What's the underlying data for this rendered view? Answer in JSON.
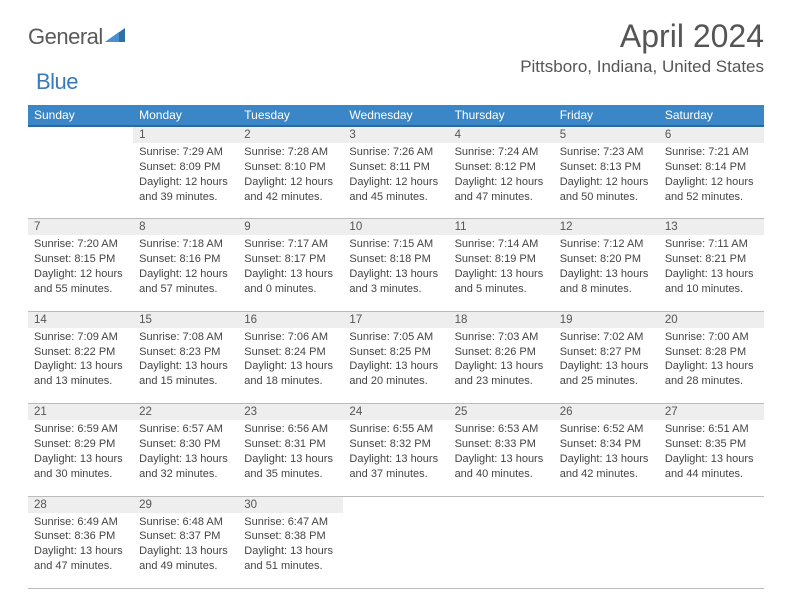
{
  "logo": {
    "part1": "General",
    "part2": "Blue"
  },
  "title": "April 2024",
  "location": "Pittsboro, Indiana, United States",
  "style": {
    "header_bg": "#3b86c6",
    "header_text": "#ffffff",
    "daynum_bg": "#eeeeee",
    "body_text": "#444444",
    "title_fontsize": 32,
    "location_fontsize": 17,
    "th_fontsize": 12,
    "cell_fontsize": 11
  },
  "weekdays": [
    "Sunday",
    "Monday",
    "Tuesday",
    "Wednesday",
    "Thursday",
    "Friday",
    "Saturday"
  ],
  "weeks": [
    [
      null,
      {
        "n": "1",
        "sr": "7:29 AM",
        "ss": "8:09 PM",
        "dl": "12 hours and 39 minutes."
      },
      {
        "n": "2",
        "sr": "7:28 AM",
        "ss": "8:10 PM",
        "dl": "12 hours and 42 minutes."
      },
      {
        "n": "3",
        "sr": "7:26 AM",
        "ss": "8:11 PM",
        "dl": "12 hours and 45 minutes."
      },
      {
        "n": "4",
        "sr": "7:24 AM",
        "ss": "8:12 PM",
        "dl": "12 hours and 47 minutes."
      },
      {
        "n": "5",
        "sr": "7:23 AM",
        "ss": "8:13 PM",
        "dl": "12 hours and 50 minutes."
      },
      {
        "n": "6",
        "sr": "7:21 AM",
        "ss": "8:14 PM",
        "dl": "12 hours and 52 minutes."
      }
    ],
    [
      {
        "n": "7",
        "sr": "7:20 AM",
        "ss": "8:15 PM",
        "dl": "12 hours and 55 minutes."
      },
      {
        "n": "8",
        "sr": "7:18 AM",
        "ss": "8:16 PM",
        "dl": "12 hours and 57 minutes."
      },
      {
        "n": "9",
        "sr": "7:17 AM",
        "ss": "8:17 PM",
        "dl": "13 hours and 0 minutes."
      },
      {
        "n": "10",
        "sr": "7:15 AM",
        "ss": "8:18 PM",
        "dl": "13 hours and 3 minutes."
      },
      {
        "n": "11",
        "sr": "7:14 AM",
        "ss": "8:19 PM",
        "dl": "13 hours and 5 minutes."
      },
      {
        "n": "12",
        "sr": "7:12 AM",
        "ss": "8:20 PM",
        "dl": "13 hours and 8 minutes."
      },
      {
        "n": "13",
        "sr": "7:11 AM",
        "ss": "8:21 PM",
        "dl": "13 hours and 10 minutes."
      }
    ],
    [
      {
        "n": "14",
        "sr": "7:09 AM",
        "ss": "8:22 PM",
        "dl": "13 hours and 13 minutes."
      },
      {
        "n": "15",
        "sr": "7:08 AM",
        "ss": "8:23 PM",
        "dl": "13 hours and 15 minutes."
      },
      {
        "n": "16",
        "sr": "7:06 AM",
        "ss": "8:24 PM",
        "dl": "13 hours and 18 minutes."
      },
      {
        "n": "17",
        "sr": "7:05 AM",
        "ss": "8:25 PM",
        "dl": "13 hours and 20 minutes."
      },
      {
        "n": "18",
        "sr": "7:03 AM",
        "ss": "8:26 PM",
        "dl": "13 hours and 23 minutes."
      },
      {
        "n": "19",
        "sr": "7:02 AM",
        "ss": "8:27 PM",
        "dl": "13 hours and 25 minutes."
      },
      {
        "n": "20",
        "sr": "7:00 AM",
        "ss": "8:28 PM",
        "dl": "13 hours and 28 minutes."
      }
    ],
    [
      {
        "n": "21",
        "sr": "6:59 AM",
        "ss": "8:29 PM",
        "dl": "13 hours and 30 minutes."
      },
      {
        "n": "22",
        "sr": "6:57 AM",
        "ss": "8:30 PM",
        "dl": "13 hours and 32 minutes."
      },
      {
        "n": "23",
        "sr": "6:56 AM",
        "ss": "8:31 PM",
        "dl": "13 hours and 35 minutes."
      },
      {
        "n": "24",
        "sr": "6:55 AM",
        "ss": "8:32 PM",
        "dl": "13 hours and 37 minutes."
      },
      {
        "n": "25",
        "sr": "6:53 AM",
        "ss": "8:33 PM",
        "dl": "13 hours and 40 minutes."
      },
      {
        "n": "26",
        "sr": "6:52 AM",
        "ss": "8:34 PM",
        "dl": "13 hours and 42 minutes."
      },
      {
        "n": "27",
        "sr": "6:51 AM",
        "ss": "8:35 PM",
        "dl": "13 hours and 44 minutes."
      }
    ],
    [
      {
        "n": "28",
        "sr": "6:49 AM",
        "ss": "8:36 PM",
        "dl": "13 hours and 47 minutes."
      },
      {
        "n": "29",
        "sr": "6:48 AM",
        "ss": "8:37 PM",
        "dl": "13 hours and 49 minutes."
      },
      {
        "n": "30",
        "sr": "6:47 AM",
        "ss": "8:38 PM",
        "dl": "13 hours and 51 minutes."
      },
      null,
      null,
      null,
      null
    ]
  ]
}
